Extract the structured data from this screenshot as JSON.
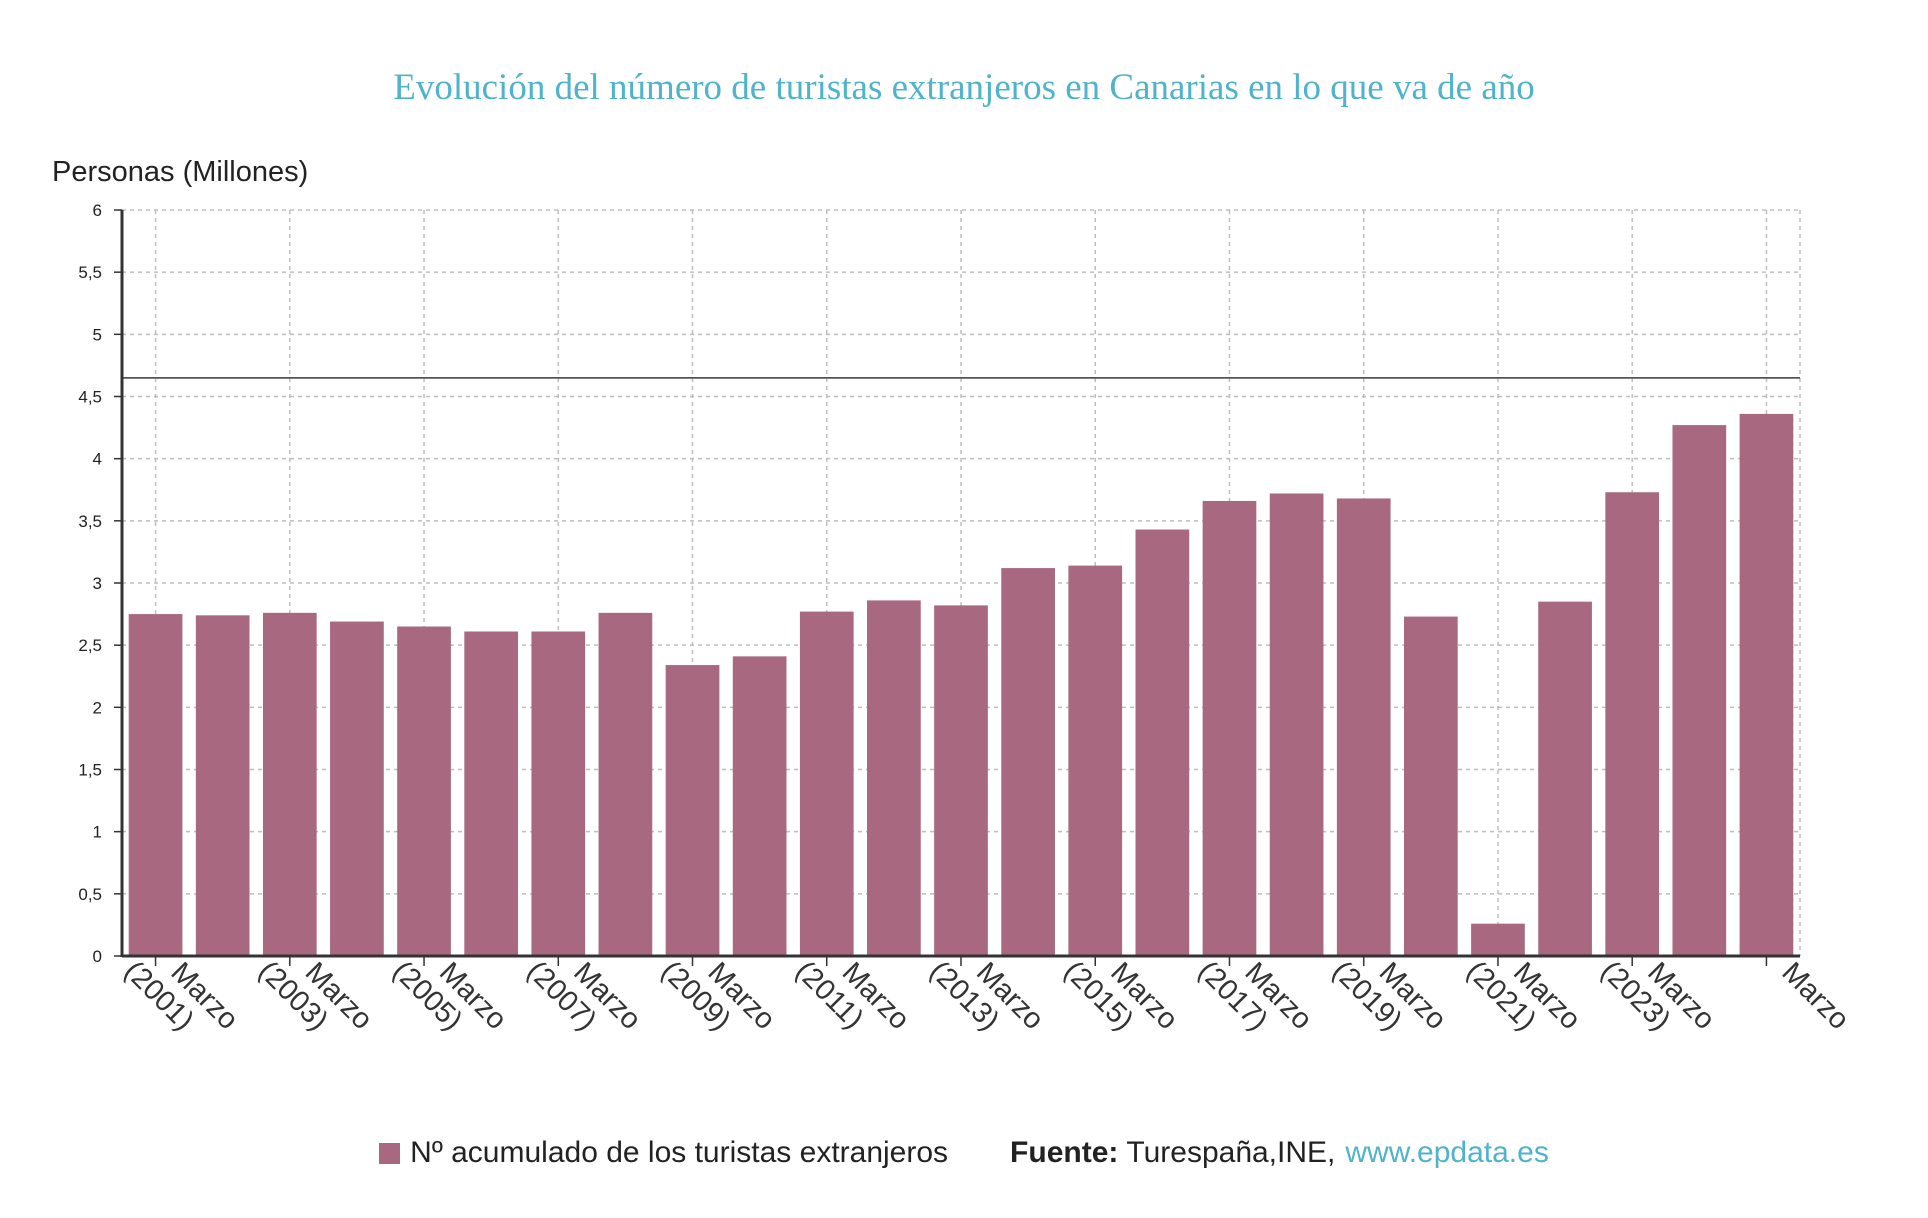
{
  "title": "Evolución del número de turistas extranjeros en Canarias en lo que va de año",
  "ylabel": "Personas (Millones)",
  "legend": {
    "series_label": "Nº acumulado de los turistas extranjeros",
    "source_label": "Fuente:",
    "source_text": "Turespaña,INE,",
    "source_link": "www.epdata.es"
  },
  "colors": {
    "bar": "#a8687f",
    "title": "#4fb3cc",
    "grid": "#bdbdbd",
    "axis": "#333333"
  },
  "chart_data": {
    "type": "bar",
    "categories": [
      "2001",
      "2002",
      "2003",
      "2004",
      "2005",
      "2006",
      "2007",
      "2008",
      "2009",
      "2010",
      "2011",
      "2012",
      "2013",
      "2014",
      "2015",
      "2016",
      "2017",
      "2018",
      "2019",
      "2020",
      "2021",
      "2022",
      "2023",
      "2024",
      "2025"
    ],
    "x_tick_labels": [
      {
        "category": "2001",
        "line1": "Marzo",
        "line2": "(2001)"
      },
      {
        "category": "2003",
        "line1": "Marzo",
        "line2": "(2003)"
      },
      {
        "category": "2005",
        "line1": "Marzo",
        "line2": "(2005)"
      },
      {
        "category": "2007",
        "line1": "Marzo",
        "line2": "(2007)"
      },
      {
        "category": "2009",
        "line1": "Marzo",
        "line2": "(2009)"
      },
      {
        "category": "2011",
        "line1": "Marzo",
        "line2": "(2011)"
      },
      {
        "category": "2013",
        "line1": "Marzo",
        "line2": "(2013)"
      },
      {
        "category": "2015",
        "line1": "Marzo",
        "line2": "(2015)"
      },
      {
        "category": "2017",
        "line1": "Marzo",
        "line2": "(2017)"
      },
      {
        "category": "2019",
        "line1": "Marzo",
        "line2": "(2019)"
      },
      {
        "category": "2021",
        "line1": "Marzo",
        "line2": "(2021)"
      },
      {
        "category": "2023",
        "line1": "Marzo",
        "line2": "(2023)"
      },
      {
        "category": "2025",
        "line1": "Marzo",
        "line2": ""
      }
    ],
    "series": [
      {
        "name": "Nº acumulado de los turistas extranjeros",
        "values": [
          2.75,
          2.74,
          2.76,
          2.69,
          2.65,
          2.61,
          2.61,
          2.76,
          2.34,
          2.41,
          2.77,
          2.86,
          2.82,
          3.12,
          3.14,
          3.43,
          3.66,
          3.72,
          3.68,
          2.73,
          0.26,
          2.85,
          3.73,
          4.27,
          4.36
        ]
      }
    ],
    "yticks": [
      "0",
      "0,5",
      "1",
      "1,5",
      "2",
      "2,5",
      "3",
      "3,5",
      "4",
      "4,5",
      "5",
      "5,5",
      "6"
    ],
    "ylim": [
      0,
      6
    ],
    "reference_line": 4.65,
    "grid": true,
    "legend_position": "bottom"
  }
}
